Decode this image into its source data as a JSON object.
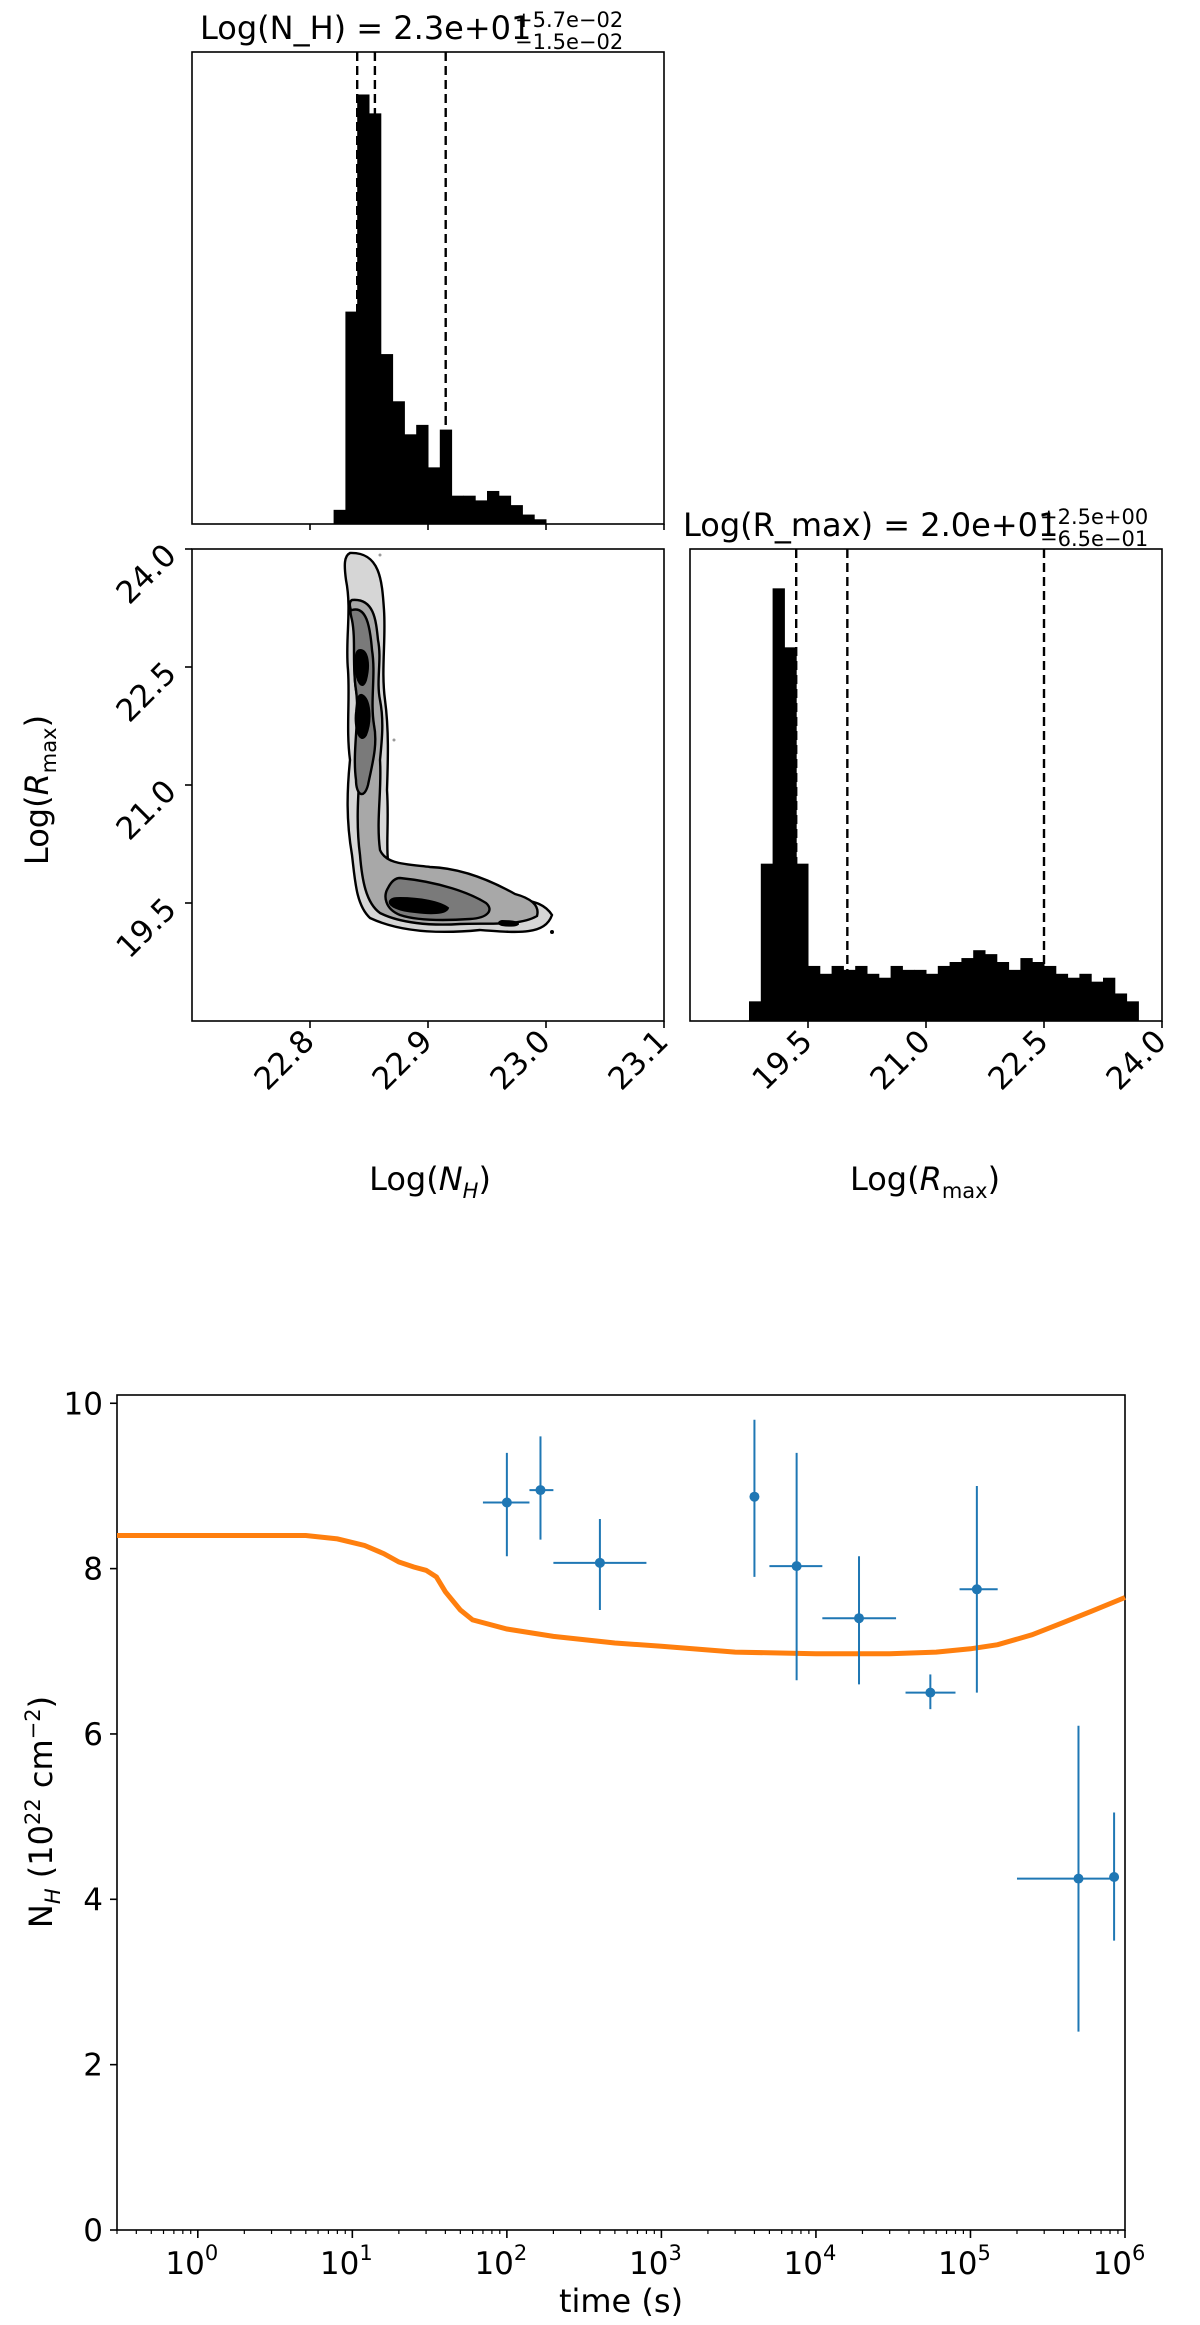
{
  "chart_data": [
    {
      "type": "histogram",
      "panel": "corner-top-left",
      "title": {
        "main": "Log(N_H) = 2.3e+01",
        "plus": "+5.7e−02",
        "minus": "−1.5e−02"
      },
      "x_range": [
        22.7,
        23.1
      ],
      "x_ticks": [
        22.8,
        22.9,
        23.0,
        23.1
      ],
      "quantile_lines": [
        22.84,
        22.855,
        22.915
      ],
      "bin_width": 0.01,
      "bin_start": 22.82,
      "counts": [
        3,
        45,
        91,
        87,
        36,
        26,
        19,
        21,
        12,
        20,
        6,
        6,
        5,
        7,
        6,
        4,
        2,
        1
      ],
      "y_max": 100
    },
    {
      "type": "contour",
      "panel": "corner-bottom-left",
      "x_range": [
        22.7,
        23.1
      ],
      "y_range": [
        18.0,
        24.0
      ],
      "x_ticks": [
        "22.8",
        "22.9",
        "23.0",
        "23.1"
      ],
      "y_ticks": [
        "19.5",
        "21.0",
        "22.5",
        "24.0"
      ],
      "xlabel": "Log(N_H)",
      "ylabel": "Log(R_max)"
    },
    {
      "type": "histogram",
      "panel": "corner-bottom-right",
      "title": {
        "main": "Log(R_max) = 2.0e+01",
        "plus": "+2.5e+00",
        "minus": "−6.5e−01"
      },
      "x_range": [
        18.0,
        24.0
      ],
      "x_ticks": [
        "19.5",
        "21.0",
        "22.5",
        "24.0"
      ],
      "xlabel": "Log(R_max)",
      "quantile_lines": [
        19.35,
        20.0,
        22.5
      ],
      "bin_width": 0.15,
      "bin_start": 18.75,
      "counts": [
        5,
        40,
        110,
        95,
        40,
        14,
        12,
        14,
        13,
        14,
        12,
        11,
        14,
        13,
        13,
        12,
        14,
        15,
        16,
        18,
        17,
        15,
        13,
        16,
        15,
        14,
        12,
        11,
        12,
        10,
        11,
        7,
        5
      ],
      "y_max": 120
    },
    {
      "type": "scatter+line",
      "panel": "bottom",
      "xscale": "log",
      "x_range": [
        0.3,
        1000000
      ],
      "y_range": [
        0,
        10.1
      ],
      "x_ticks": [
        {
          "base": "10",
          "exp": "0"
        },
        {
          "base": "10",
          "exp": "1"
        },
        {
          "base": "10",
          "exp": "2"
        },
        {
          "base": "10",
          "exp": "3"
        },
        {
          "base": "10",
          "exp": "4"
        },
        {
          "base": "10",
          "exp": "5"
        },
        {
          "base": "10",
          "exp": "6"
        }
      ],
      "y_ticks": [
        "0",
        "2",
        "4",
        "6",
        "8",
        "10"
      ],
      "xlabel": "time (s)",
      "ylabel": "N_H (10^22 cm^-2)",
      "colors": {
        "points": "#1f77b4",
        "model": "#ff7f0e"
      },
      "points": [
        {
          "x": 100,
          "xlo": 70,
          "xhi": 140,
          "y": 8.8,
          "ylo": 8.15,
          "yhi": 9.4
        },
        {
          "x": 165,
          "xlo": 140,
          "xhi": 200,
          "y": 8.95,
          "ylo": 8.35,
          "yhi": 9.6
        },
        {
          "x": 400,
          "xlo": 200,
          "xhi": 800,
          "y": 8.07,
          "ylo": 7.5,
          "yhi": 8.6
        },
        {
          "x": 4000,
          "xlo": 3900,
          "xhi": 4100,
          "y": 8.87,
          "ylo": 7.9,
          "yhi": 9.8
        },
        {
          "x": 7500,
          "xlo": 5000,
          "xhi": 11000,
          "y": 8.03,
          "ylo": 6.65,
          "yhi": 9.4
        },
        {
          "x": 19000,
          "xlo": 11000,
          "xhi": 33000,
          "y": 7.4,
          "ylo": 6.6,
          "yhi": 8.15
        },
        {
          "x": 55000,
          "xlo": 38000,
          "xhi": 80000,
          "y": 6.5,
          "ylo": 6.3,
          "yhi": 6.72
        },
        {
          "x": 110000,
          "xlo": 85000,
          "xhi": 150000,
          "y": 7.75,
          "ylo": 6.5,
          "yhi": 9.0
        },
        {
          "x": 500000,
          "xlo": 200000,
          "xhi": 800000,
          "y": 4.25,
          "ylo": 2.4,
          "yhi": 6.1
        },
        {
          "x": 850000,
          "xlo": 800000,
          "xhi": 900000,
          "y": 4.27,
          "ylo": 3.5,
          "yhi": 5.05
        }
      ],
      "model_curve": [
        {
          "x": 0.3,
          "y": 8.4
        },
        {
          "x": 5,
          "y": 8.4
        },
        {
          "x": 8,
          "y": 8.36
        },
        {
          "x": 12,
          "y": 8.28
        },
        {
          "x": 16,
          "y": 8.18
        },
        {
          "x": 20,
          "y": 8.08
        },
        {
          "x": 25,
          "y": 8.02
        },
        {
          "x": 30,
          "y": 7.98
        },
        {
          "x": 35,
          "y": 7.9
        },
        {
          "x": 40,
          "y": 7.72
        },
        {
          "x": 50,
          "y": 7.5
        },
        {
          "x": 60,
          "y": 7.38
        },
        {
          "x": 100,
          "y": 7.27
        },
        {
          "x": 200,
          "y": 7.18
        },
        {
          "x": 500,
          "y": 7.1
        },
        {
          "x": 1000,
          "y": 7.06
        },
        {
          "x": 3000,
          "y": 6.99
        },
        {
          "x": 10000,
          "y": 6.97
        },
        {
          "x": 30000,
          "y": 6.97
        },
        {
          "x": 60000,
          "y": 6.99
        },
        {
          "x": 100000,
          "y": 7.03
        },
        {
          "x": 150000,
          "y": 7.08
        },
        {
          "x": 250000,
          "y": 7.2
        },
        {
          "x": 400000,
          "y": 7.35
        },
        {
          "x": 600000,
          "y": 7.48
        },
        {
          "x": 1000000,
          "y": 7.65
        }
      ]
    }
  ]
}
